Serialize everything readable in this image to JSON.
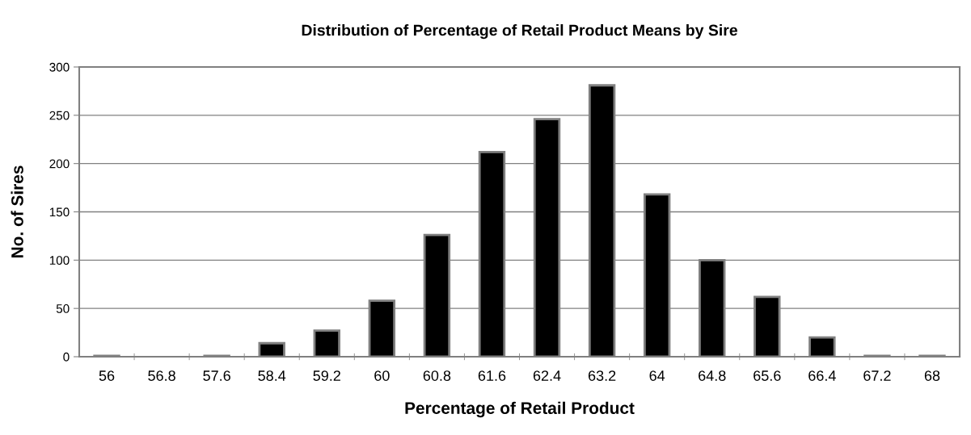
{
  "chart_data": {
    "type": "bar",
    "title": "Distribution of Percentage of Retail Product Means by Sire",
    "xlabel": "Percentage of Retail Product",
    "ylabel": "No. of Sires",
    "categories": [
      "56",
      "56.8",
      "57.6",
      "58.4",
      "59.2",
      "60",
      "60.8",
      "61.6",
      "62.4",
      "63.2",
      "64",
      "64.8",
      "65.6",
      "66.4",
      "67.2",
      "68"
    ],
    "values": [
      1,
      0,
      1,
      14,
      27,
      58,
      126,
      212,
      246,
      281,
      168,
      100,
      62,
      20,
      1,
      1
    ],
    "color": "#000000",
    "ylim": [
      0,
      300
    ],
    "yticks": [
      0,
      50,
      100,
      150,
      200,
      250,
      300
    ],
    "grid": "y"
  }
}
